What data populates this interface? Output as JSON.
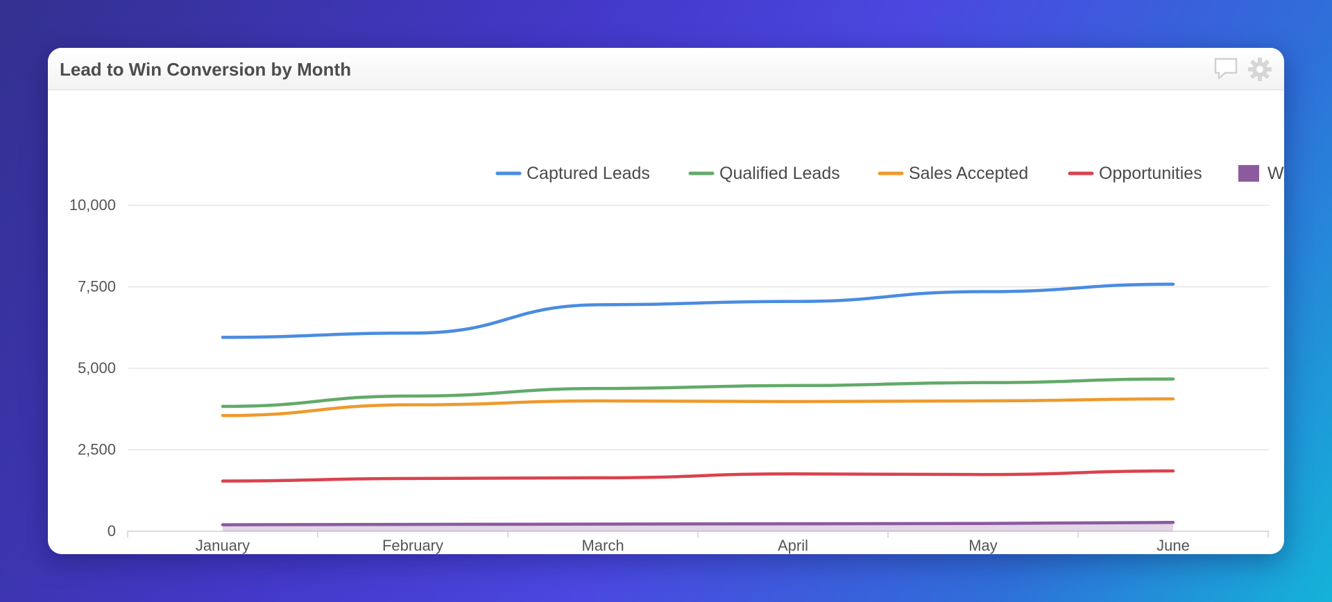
{
  "widget": {
    "title": "Lead to Win Conversion by Month",
    "icons": [
      "comment-icon",
      "gear-icon"
    ]
  },
  "chart_data": {
    "type": "line",
    "categories": [
      "January",
      "February",
      "March",
      "April",
      "May",
      "June"
    ],
    "series": [
      {
        "name": "Captured Leads",
        "color": "#4a8ce0",
        "values": [
          5950,
          6080,
          6950,
          7050,
          7350,
          7580
        ]
      },
      {
        "name": "Qualified Leads",
        "color": "#62aa6a",
        "values": [
          3830,
          4150,
          4380,
          4470,
          4560,
          4670
        ]
      },
      {
        "name": "Sales Accepted",
        "color": "#ee9a2e",
        "values": [
          3550,
          3880,
          4000,
          3980,
          4000,
          4060
        ]
      },
      {
        "name": "Opportunities",
        "color": "#d9434e",
        "values": [
          1540,
          1620,
          1640,
          1760,
          1740,
          1850
        ]
      },
      {
        "name": "Wins",
        "color": "#8d5a9e",
        "type": "area",
        "values": [
          200,
          210,
          220,
          230,
          240,
          270
        ]
      }
    ],
    "yticks": [
      "10,000",
      "7,500",
      "5,000",
      "2,500",
      "0"
    ],
    "ylim": [
      0,
      10000
    ],
    "grid": true,
    "legend_position": "top-right"
  }
}
